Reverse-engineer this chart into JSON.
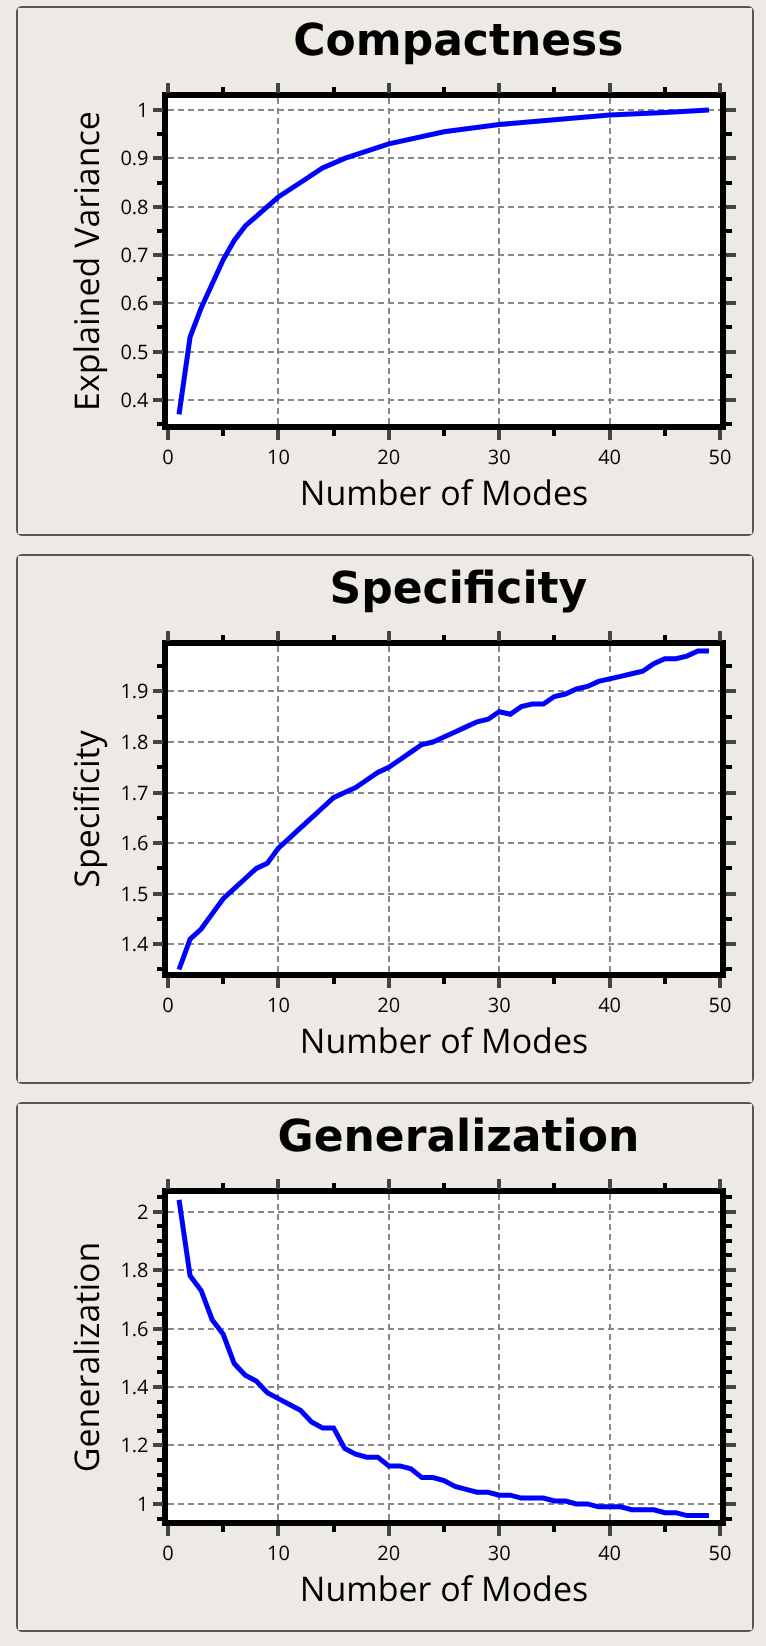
{
  "chart_data": [
    {
      "type": "line",
      "title": "Compactness",
      "xlabel": "Number of Modes",
      "ylabel": "Explained Variance",
      "xlim": [
        0,
        50
      ],
      "xticks": [
        0,
        10,
        20,
        30,
        40,
        50
      ],
      "ylim": [
        0.35,
        1.025
      ],
      "yticks": [
        0.4,
        0.5,
        0.6,
        0.7,
        0.8,
        0.9,
        1
      ],
      "grid": true,
      "marker": "none",
      "line_style": "solid",
      "x": [
        1,
        2,
        3,
        4,
        5,
        6,
        7,
        8,
        9,
        10,
        12,
        14,
        16,
        18,
        20,
        25,
        30,
        35,
        40,
        45,
        49
      ],
      "series": [
        {
          "color": "#0000ff",
          "values": [
            0.37,
            0.53,
            0.59,
            0.64,
            0.69,
            0.73,
            0.76,
            0.78,
            0.8,
            0.82,
            0.85,
            0.88,
            0.9,
            0.915,
            0.93,
            0.955,
            0.97,
            0.98,
            0.99,
            0.995,
            1.0
          ]
        }
      ]
    },
    {
      "type": "line",
      "title": "Specificity",
      "xlabel": "Number of Modes",
      "ylabel": "Specificity",
      "xlim": [
        0,
        50
      ],
      "xticks": [
        0,
        10,
        20,
        30,
        40,
        50
      ],
      "ylim": [
        1.345,
        1.99
      ],
      "yticks": [
        1.4,
        1.5,
        1.6,
        1.7,
        1.8,
        1.9
      ],
      "grid": true,
      "marker": "none",
      "line_style": "solid",
      "x": [
        1,
        2,
        3,
        4,
        5,
        6,
        7,
        8,
        9,
        10,
        11,
        12,
        13,
        14,
        15,
        16,
        17,
        18,
        19,
        20,
        21,
        22,
        23,
        24,
        25,
        26,
        27,
        28,
        29,
        30,
        31,
        32,
        33,
        34,
        35,
        36,
        37,
        38,
        39,
        40,
        41,
        42,
        43,
        44,
        45,
        46,
        47,
        48,
        49
      ],
      "series": [
        {
          "color": "#0000ff",
          "values": [
            1.35,
            1.41,
            1.43,
            1.46,
            1.49,
            1.51,
            1.53,
            1.55,
            1.56,
            1.59,
            1.61,
            1.63,
            1.65,
            1.67,
            1.69,
            1.7,
            1.71,
            1.725,
            1.74,
            1.75,
            1.765,
            1.78,
            1.795,
            1.8,
            1.81,
            1.82,
            1.83,
            1.84,
            1.845,
            1.86,
            1.855,
            1.87,
            1.875,
            1.875,
            1.89,
            1.895,
            1.905,
            1.91,
            1.92,
            1.925,
            1.93,
            1.935,
            1.94,
            1.955,
            1.965,
            1.965,
            1.97,
            1.98,
            1.98
          ]
        }
      ]
    },
    {
      "type": "line",
      "title": "Generalization",
      "xlabel": "Number of Modes",
      "ylabel": "Generalization",
      "xlim": [
        0,
        50
      ],
      "xticks": [
        0,
        10,
        20,
        30,
        40,
        50
      ],
      "ylim": [
        0.945,
        2.06
      ],
      "yticks": [
        {
          "value": 1,
          "label": "1"
        },
        {
          "value": 1.2,
          "label": "1.2"
        },
        {
          "value": 1.4,
          "label": "1.4"
        },
        {
          "value": 1.6,
          "label": "1.6"
        },
        {
          "value": 1.8,
          "label": "1.8"
        },
        2
      ],
      "grid": true,
      "marker": "none",
      "line_style": "solid",
      "x": [
        1,
        2,
        3,
        4,
        5,
        6,
        7,
        8,
        9,
        10,
        11,
        12,
        13,
        14,
        15,
        16,
        17,
        18,
        19,
        20,
        21,
        22,
        23,
        24,
        25,
        26,
        27,
        28,
        29,
        30,
        31,
        32,
        33,
        34,
        35,
        36,
        37,
        38,
        39,
        40,
        41,
        42,
        43,
        44,
        45,
        46,
        47,
        48,
        49
      ],
      "series": [
        {
          "color": "#0000ff",
          "values": [
            2.04,
            1.78,
            1.73,
            1.63,
            1.58,
            1.48,
            1.44,
            1.42,
            1.38,
            1.36,
            1.34,
            1.32,
            1.28,
            1.26,
            1.26,
            1.19,
            1.17,
            1.16,
            1.16,
            1.13,
            1.13,
            1.12,
            1.09,
            1.09,
            1.08,
            1.06,
            1.05,
            1.04,
            1.04,
            1.03,
            1.03,
            1.02,
            1.02,
            1.02,
            1.01,
            1.01,
            1.0,
            1.0,
            0.99,
            0.99,
            0.99,
            0.98,
            0.98,
            0.98,
            0.97,
            0.97,
            0.96,
            0.96,
            0.96
          ]
        }
      ]
    }
  ]
}
